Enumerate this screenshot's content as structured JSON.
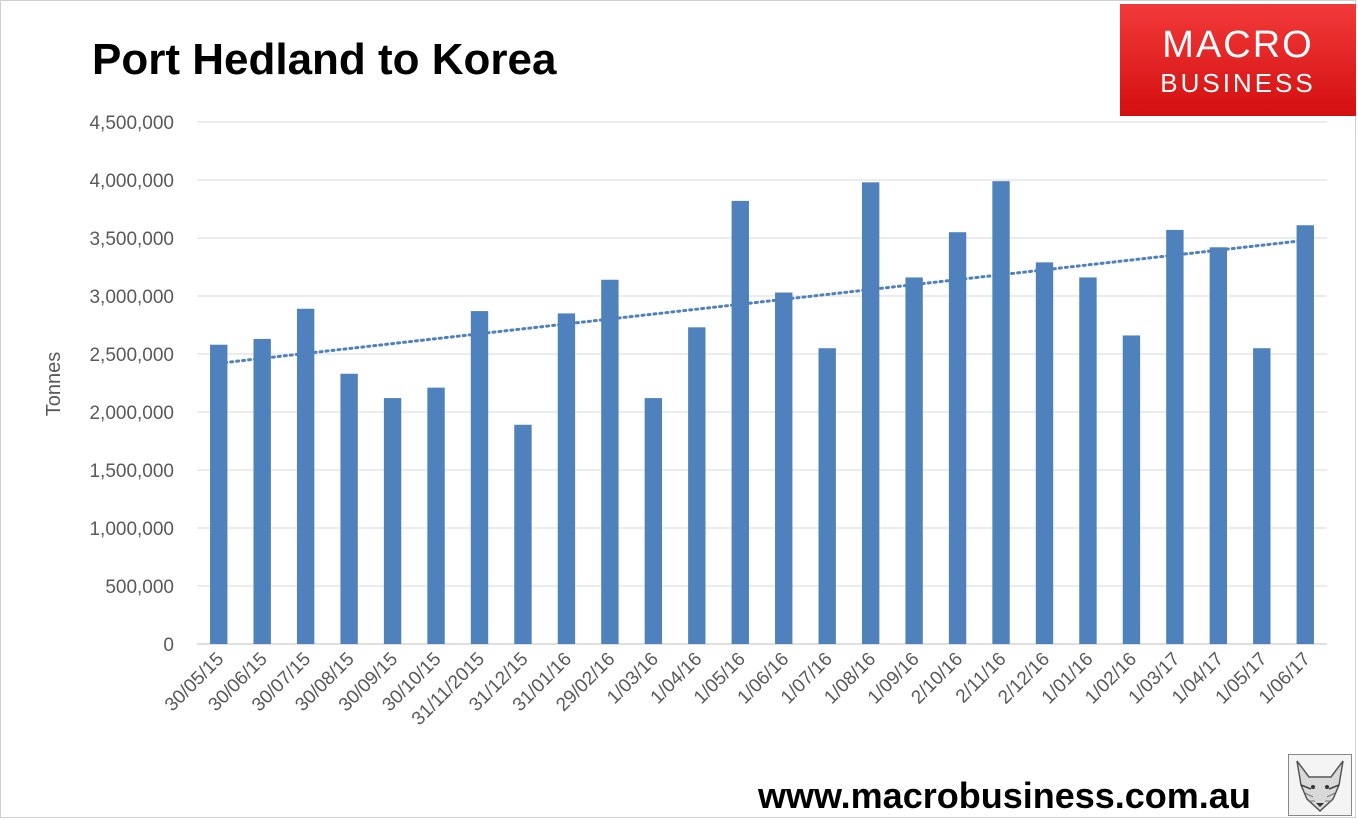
{
  "title": "Port Hedland to Korea",
  "logo": {
    "line1": "MACRO",
    "line2": "BUSINESS",
    "color": "#e01b1b"
  },
  "footer_url": "www.macrobusiness.com.au",
  "icons": {
    "mascot": "fox-icon"
  },
  "chart_data": {
    "type": "bar",
    "title": "Port Hedland to Korea",
    "xlabel": "",
    "ylabel": "Tonnes",
    "ylim": [
      0,
      4500000
    ],
    "yticks": [
      0,
      500000,
      1000000,
      1500000,
      2000000,
      2500000,
      3000000,
      3500000,
      4000000,
      4500000
    ],
    "ytick_labels": [
      "0",
      "500,000",
      "1,000,000",
      "1,500,000",
      "2,000,000",
      "2,500,000",
      "3,000,000",
      "3,500,000",
      "4,000,000",
      "4,500,000"
    ],
    "grid": true,
    "bar_color": "#4f81bd",
    "trendline": {
      "type": "linear",
      "style": "dotted",
      "color": "#4f81bd",
      "start": 2420000,
      "end": 3480000
    },
    "categories": [
      "30/05/15",
      "30/06/15",
      "30/07/15",
      "30/08/15",
      "30/09/15",
      "30/10/15",
      "31/11/2015",
      "31/12/15",
      "31/01/16",
      "29/02/16",
      "1/03/16",
      "1/04/16",
      "1/05/16",
      "1/06/16",
      "1/07/16",
      "1/08/16",
      "1/09/16",
      "2/10/16",
      "2/11/16",
      "2/12/16",
      "1/01/16",
      "1/02/16",
      "1/03/17",
      "1/04/17",
      "1/05/17",
      "1/06/17"
    ],
    "values": [
      2580000,
      2630000,
      2890000,
      2330000,
      2120000,
      2210000,
      2870000,
      1890000,
      2850000,
      3140000,
      2120000,
      2730000,
      3820000,
      3030000,
      2550000,
      3980000,
      3160000,
      3550000,
      3990000,
      3290000,
      3160000,
      2660000,
      3570000,
      3420000,
      2550000,
      3610000
    ]
  }
}
